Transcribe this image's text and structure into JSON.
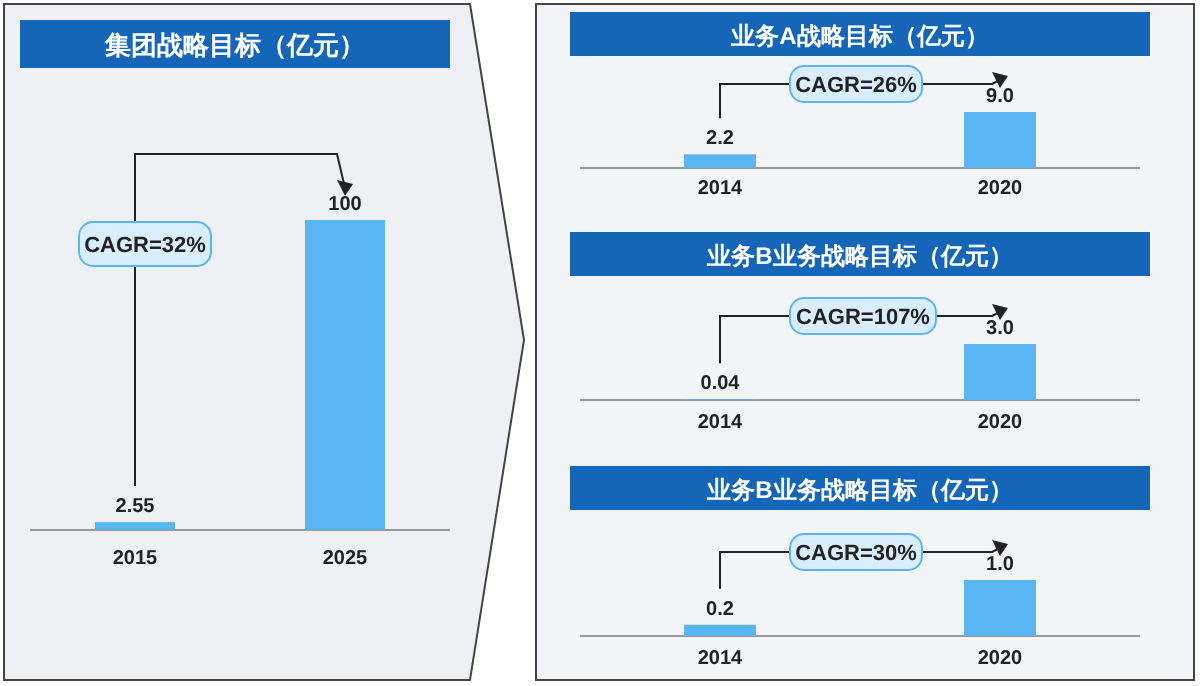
{
  "chart_data": [
    {
      "type": "bar",
      "title": "集团战略目标（亿元）",
      "categories": [
        "2015",
        "2025"
      ],
      "values": [
        2.55,
        100
      ],
      "value_labels": [
        "2.55",
        "100"
      ],
      "color": "#5ab6f2",
      "annotations": [
        "CAGR=32%"
      ]
    },
    {
      "type": "bar",
      "title": "业务A战略目标（亿元）",
      "categories": [
        "2014",
        "2020"
      ],
      "values": [
        2.2,
        9.0
      ],
      "value_labels": [
        "2.2",
        "9.0"
      ],
      "color": "#5ab6f2",
      "annotations": [
        "CAGR=26%"
      ]
    },
    {
      "type": "bar",
      "title": "业务B业务战略目标（亿元）",
      "categories": [
        "2014",
        "2020"
      ],
      "values": [
        0.04,
        3.0
      ],
      "value_labels": [
        "0.04",
        "3.0"
      ],
      "color": "#5ab6f2",
      "annotations": [
        "CAGR=107%"
      ]
    },
    {
      "type": "bar",
      "title": "业务B业务战略目标（亿元）",
      "categories": [
        "2014",
        "2020"
      ],
      "values": [
        0.2,
        1.0
      ],
      "value_labels": [
        "0.2",
        "1.0"
      ],
      "color": "#5ab6f2",
      "annotations": [
        "CAGR=30%"
      ]
    }
  ]
}
